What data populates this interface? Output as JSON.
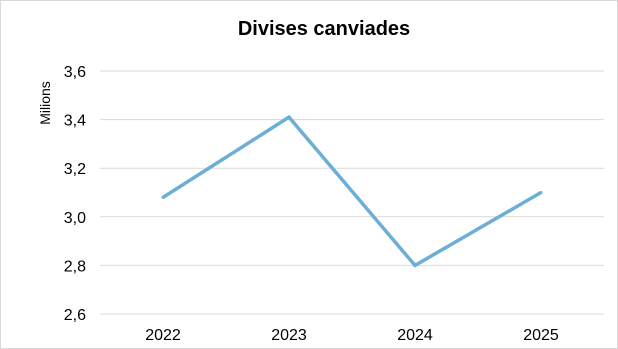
{
  "chart_data": {
    "type": "line",
    "title": "Divises canviades",
    "xlabel": "",
    "ylabel": "Milions",
    "categories": [
      "2022",
      "2023",
      "2024",
      "2025"
    ],
    "series": [
      {
        "values": [
          3.08,
          3.41,
          2.8,
          3.1
        ],
        "color": "#6baed6"
      }
    ],
    "ylim": [
      2.6,
      3.6
    ],
    "yticks": [
      2.6,
      2.8,
      3.0,
      3.2,
      3.4,
      3.6
    ],
    "ytick_labels": [
      "2,6",
      "2,8",
      "3,0",
      "3,2",
      "3,4",
      "3,6"
    ],
    "grid": true,
    "legend": "none"
  }
}
